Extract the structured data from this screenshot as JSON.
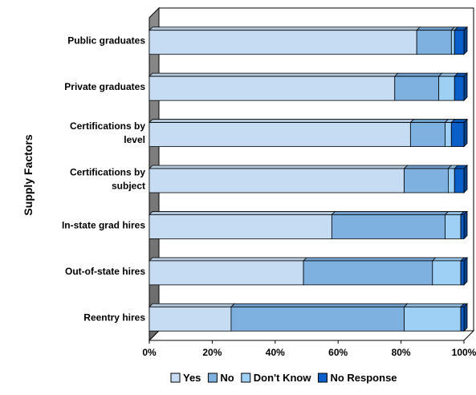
{
  "chart_data": {
    "type": "bar",
    "orientation": "horizontal",
    "stacked": true,
    "percent": true,
    "ylabel": "Supply Factors",
    "xlim": [
      0,
      100
    ],
    "x_ticks": [
      "0%",
      "20%",
      "40%",
      "60%",
      "80%",
      "100%"
    ],
    "legend_position": "bottom",
    "categories": [
      [
        "Public graduates"
      ],
      [
        "Private graduates"
      ],
      [
        "Certifications by",
        "level"
      ],
      [
        "Certifications by",
        "subject"
      ],
      [
        "In-state grad hires"
      ],
      [
        "Out-of-state hires"
      ],
      [
        "Reentry hires"
      ]
    ],
    "series": [
      {
        "name": "Yes",
        "color": "#c6dcf2",
        "values": [
          85,
          78,
          83,
          81,
          58,
          49,
          26
        ]
      },
      {
        "name": "No",
        "color": "#7eb0e0",
        "values": [
          11,
          14,
          11,
          14,
          36,
          41,
          55
        ]
      },
      {
        "name": "Don't Know",
        "color": "#9ecff5",
        "values": [
          1,
          5,
          2,
          2,
          5,
          9,
          18
        ]
      },
      {
        "name": "No Response",
        "color": "#0a5fc8",
        "values": [
          3,
          3,
          4,
          3,
          1,
          1,
          1
        ]
      }
    ]
  }
}
